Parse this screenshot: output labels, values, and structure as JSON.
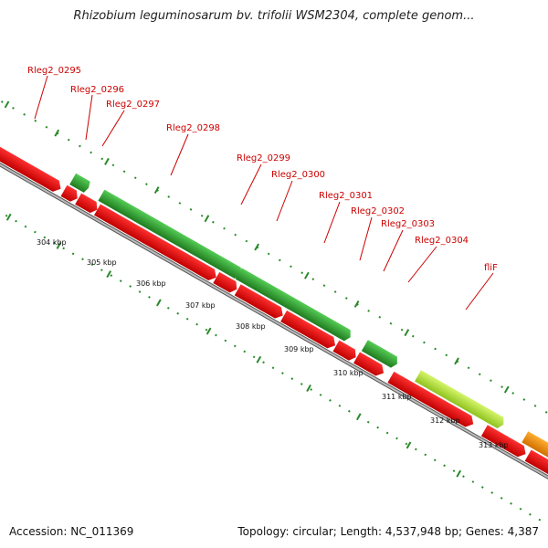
{
  "header": {
    "title": "Rhizobium leguminosarum bv. trifolii WSM2304, complete genom..."
  },
  "footer": {
    "accession": "Accession: NC_011369",
    "summary": "Topology: circular; Length: 4,537,948 bp; Genes: 4,387"
  },
  "colors": {
    "forward_gene": "#2d9e2d",
    "reverse_gene": "#e00000",
    "highlight_gene": "#b6e63a",
    "other_gene": "#f08c00",
    "label": "#cc0000"
  },
  "map": {
    "scale_labels": [
      "304 kbp",
      "305 kbp",
      "306 kbp",
      "307 kbp",
      "308 kbp",
      "309 kbp",
      "310 kbp",
      "311 kbp",
      "312 kbp",
      "313 kbp"
    ],
    "gene_labels": [
      "Rleg2_0295",
      "Rleg2_0296",
      "Rleg2_0297",
      "Rleg2_0298",
      "Rleg2_0299",
      "Rleg2_0300",
      "Rleg2_0301",
      "Rleg2_0302",
      "Rleg2_0303",
      "Rleg2_0304",
      "fliF"
    ]
  }
}
